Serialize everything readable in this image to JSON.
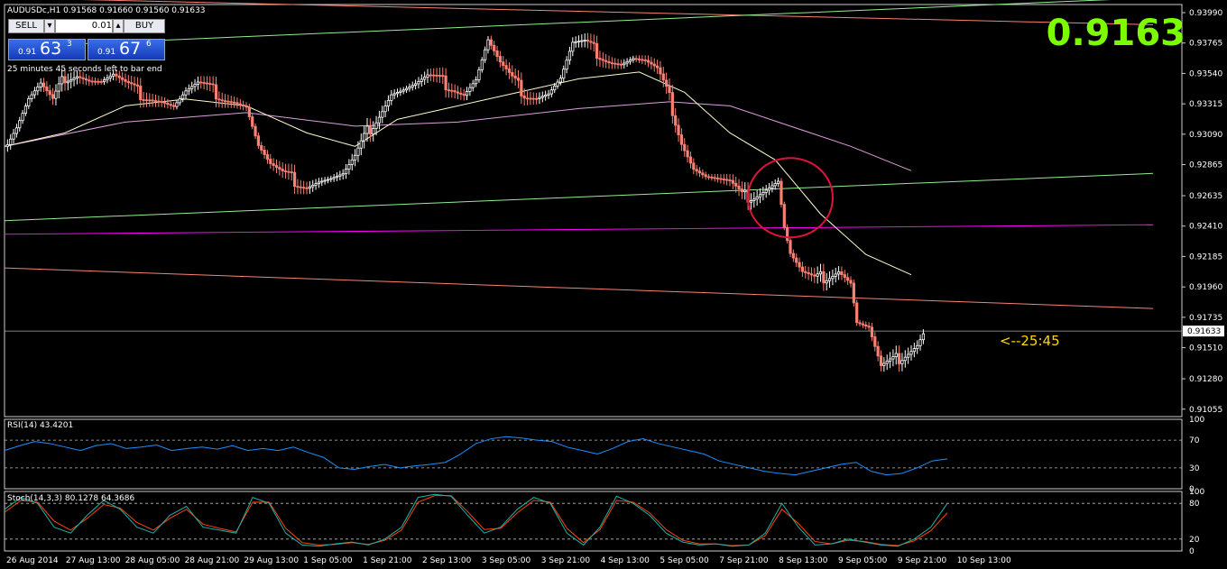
{
  "header": {
    "symbol_info": "AUDUSDc,H1  0.91568 0.91660 0.91560 0.91633"
  },
  "trade_panel": {
    "sell_label": "SELL",
    "buy_label": "BUY",
    "lot_value": "0.01",
    "sell_price_small": "0.91",
    "sell_price_big": "63",
    "sell_price_sup": "3",
    "buy_price_small": "0.91",
    "buy_price_big": "67",
    "buy_price_sup": "6"
  },
  "countdown_info": "25 minutes 45 seconds left to bar end",
  "big_price": "0.9163",
  "countdown_marker": "<--25:45",
  "current_price_label": "0.91633",
  "colors": {
    "background": "#000000",
    "bull_candle": "#ffffff",
    "bear_candle": "#fa8072",
    "ma_fast": "#fffacd",
    "ma_slow": "#dda0dd",
    "trendline_green": "#90ee90",
    "trendline_salmon": "#fa8072",
    "trendline_magenta": "#ff00ff",
    "rsi_line": "#1e90ff",
    "stoch_main": "#20b2aa",
    "stoch_signal": "#ff4500",
    "big_price": "#7cfc00",
    "countdown": "#ffd700",
    "circle": "#dc143c"
  },
  "chart_data": [
    {
      "type": "candlestick",
      "symbol": "AUDUSDc",
      "timeframe": "H1",
      "ylim": [
        0.91,
        0.9405
      ],
      "price_ticks": [
        "0.93990",
        "0.93765",
        "0.93540",
        "0.93315",
        "0.93090",
        "0.92865",
        "0.92635",
        "0.92410",
        "0.92185",
        "0.91960",
        "0.91735",
        "0.91510",
        "0.91280",
        "0.91055"
      ],
      "x_ticks": [
        "26 Aug 2014",
        "27 Aug 13:00",
        "28 Aug 05:00",
        "28 Aug 21:00",
        "29 Aug 13:00",
        "1 Sep 05:00",
        "1 Sep 21:00",
        "2 Sep 13:00",
        "3 Sep 05:00",
        "3 Sep 21:00",
        "4 Sep 13:00",
        "5 Sep 05:00",
        "7 Sep 21:00",
        "8 Sep 13:00",
        "9 Sep 05:00",
        "9 Sep 21:00",
        "10 Sep 13:00"
      ],
      "close_path": [
        [
          0,
          0.93
        ],
        [
          4,
          0.9315
        ],
        [
          8,
          0.9335
        ],
        [
          12,
          0.9345
        ],
        [
          16,
          0.9332
        ],
        [
          20,
          0.9352
        ],
        [
          24,
          0.9355
        ],
        [
          28,
          0.935
        ],
        [
          32,
          0.9348
        ],
        [
          36,
          0.9352
        ],
        [
          40,
          0.9345
        ],
        [
          44,
          0.934
        ],
        [
          48,
          0.9338
        ],
        [
          52,
          0.9335
        ],
        [
          56,
          0.933
        ],
        [
          60,
          0.934
        ],
        [
          64,
          0.9345
        ],
        [
          68,
          0.9342
        ],
        [
          72,
          0.9338
        ],
        [
          76,
          0.9335
        ],
        [
          80,
          0.933
        ],
        [
          84,
          0.93
        ],
        [
          88,
          0.9285
        ],
        [
          92,
          0.9278
        ],
        [
          96,
          0.9275
        ],
        [
          100,
          0.9272
        ],
        [
          104,
          0.9275
        ],
        [
          108,
          0.9276
        ],
        [
          112,
          0.9278
        ],
        [
          116,
          0.929
        ],
        [
          120,
          0.931
        ],
        [
          124,
          0.9325
        ],
        [
          128,
          0.934
        ],
        [
          132,
          0.9342
        ],
        [
          136,
          0.9345
        ],
        [
          140,
          0.935
        ],
        [
          144,
          0.9348
        ],
        [
          148,
          0.9345
        ],
        [
          152,
          0.934
        ],
        [
          156,
          0.935
        ],
        [
          160,
          0.9378
        ],
        [
          164,
          0.936
        ],
        [
          168,
          0.9348
        ],
        [
          172,
          0.934
        ],
        [
          176,
          0.9338
        ],
        [
          180,
          0.934
        ],
        [
          184,
          0.935
        ],
        [
          188,
          0.9375
        ],
        [
          192,
          0.9375
        ],
        [
          196,
          0.937
        ],
        [
          200,
          0.9365
        ],
        [
          204,
          0.9362
        ],
        [
          208,
          0.9365
        ],
        [
          212,
          0.9362
        ],
        [
          216,
          0.9355
        ],
        [
          220,
          0.9335
        ],
        [
          224,
          0.9305
        ],
        [
          228,
          0.9285
        ],
        [
          232,
          0.9278
        ],
        [
          236,
          0.9275
        ],
        [
          240,
          0.9272
        ],
        [
          244,
          0.9262
        ],
        [
          248,
          0.9265
        ],
        [
          252,
          0.927
        ],
        [
          256,
          0.9275
        ],
        [
          258,
          0.924
        ],
        [
          260,
          0.922
        ],
        [
          264,
          0.9205
        ],
        [
          268,
          0.92
        ],
        [
          272,
          0.9205
        ],
        [
          276,
          0.921
        ],
        [
          280,
          0.92
        ],
        [
          282,
          0.917
        ],
        [
          286,
          0.9165
        ],
        [
          290,
          0.9135
        ],
        [
          294,
          0.914
        ],
        [
          298,
          0.9148
        ],
        [
          302,
          0.9155
        ],
        [
          304,
          0.9163
        ]
      ],
      "ma_fast_path": [
        [
          0,
          0.93
        ],
        [
          20,
          0.931
        ],
        [
          40,
          0.933
        ],
        [
          60,
          0.9335
        ],
        [
          80,
          0.933
        ],
        [
          100,
          0.931
        ],
        [
          116,
          0.93
        ],
        [
          130,
          0.932
        ],
        [
          150,
          0.933
        ],
        [
          170,
          0.934
        ],
        [
          190,
          0.935
        ],
        [
          210,
          0.9355
        ],
        [
          225,
          0.934
        ],
        [
          240,
          0.931
        ],
        [
          255,
          0.929
        ],
        [
          270,
          0.925
        ],
        [
          285,
          0.922
        ],
        [
          300,
          0.9205
        ]
      ],
      "ma_slow_path": [
        [
          0,
          0.93
        ],
        [
          40,
          0.9318
        ],
        [
          80,
          0.9325
        ],
        [
          116,
          0.9315
        ],
        [
          150,
          0.9318
        ],
        [
          190,
          0.9328
        ],
        [
          220,
          0.9333
        ],
        [
          240,
          0.933
        ],
        [
          260,
          0.9315
        ],
        [
          280,
          0.93
        ],
        [
          300,
          0.9282
        ]
      ],
      "trendlines": [
        {
          "color": "salmon",
          "from": [
            0,
            0.941
          ],
          "to": [
            380,
            0.939
          ]
        },
        {
          "color": "green",
          "from": [
            15,
            0.9375
          ],
          "to": [
            380,
            0.941
          ]
        },
        {
          "color": "green",
          "from": [
            0,
            0.9245
          ],
          "to": [
            380,
            0.928
          ]
        },
        {
          "color": "magenta",
          "from": [
            0,
            0.9235
          ],
          "to": [
            380,
            0.9242
          ]
        },
        {
          "color": "salmon",
          "from": [
            0,
            0.921
          ],
          "to": [
            380,
            0.918
          ]
        }
      ],
      "current_price": 0.91633,
      "annotation_circle": {
        "x": 260,
        "y": 0.9262
      }
    },
    {
      "type": "line",
      "name": "RSI(14)",
      "label": "RSI(14) 43.4201",
      "ylim": [
        0,
        100
      ],
      "y_ticks": [
        "100",
        "70",
        "30",
        "0"
      ],
      "levels": [
        70,
        30
      ],
      "values": [
        55,
        62,
        68,
        65,
        60,
        55,
        62,
        65,
        58,
        60,
        63,
        55,
        58,
        60,
        57,
        62,
        55,
        58,
        55,
        60,
        52,
        45,
        30,
        28,
        32,
        35,
        30,
        33,
        35,
        38,
        50,
        65,
        72,
        75,
        73,
        70,
        68,
        60,
        55,
        50,
        58,
        68,
        72,
        65,
        60,
        55,
        50,
        40,
        35,
        30,
        25,
        22,
        20,
        25,
        30,
        35,
        38,
        25,
        20,
        22,
        30,
        40,
        43
      ]
    },
    {
      "type": "line",
      "name": "Stoch(14,3,3)",
      "label": "Stoch(14,3,3) 80.1278 64.3686",
      "ylim": [
        0,
        100
      ],
      "y_ticks": [
        "100",
        "80",
        "20",
        "0"
      ],
      "levels": [
        80,
        20
      ],
      "main": [
        70,
        90,
        80,
        40,
        30,
        60,
        85,
        70,
        40,
        30,
        60,
        75,
        40,
        35,
        30,
        90,
        80,
        30,
        10,
        8,
        12,
        15,
        10,
        20,
        40,
        90,
        95,
        92,
        60,
        30,
        40,
        70,
        90,
        80,
        30,
        10,
        40,
        92,
        80,
        60,
        30,
        15,
        10,
        12,
        8,
        10,
        30,
        80,
        40,
        10,
        12,
        20,
        15,
        10,
        8,
        20,
        40,
        80
      ],
      "signal": [
        65,
        85,
        82,
        50,
        35,
        55,
        78,
        72,
        48,
        35,
        55,
        70,
        45,
        38,
        32,
        82,
        82,
        38,
        14,
        10,
        11,
        14,
        11,
        18,
        35,
        82,
        93,
        93,
        66,
        36,
        38,
        64,
        85,
        82,
        38,
        14,
        36,
        85,
        82,
        64,
        36,
        18,
        12,
        12,
        9,
        10,
        26,
        70,
        46,
        16,
        12,
        18,
        16,
        11,
        9,
        17,
        34,
        64
      ]
    }
  ]
}
